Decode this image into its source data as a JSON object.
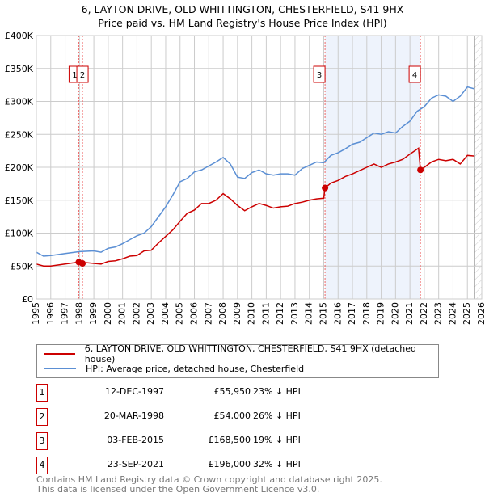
{
  "title": "6, LAYTON DRIVE, OLD WHITTINGTON, CHESTERFIELD, S41 9HX",
  "subtitle": "Price paid vs. HM Land Registry's House Price Index (HPI)",
  "chart_data": {
    "type": "line",
    "xlim": [
      1995,
      2026
    ],
    "ylim": [
      0,
      400000
    ],
    "yticks": [
      0,
      50000,
      100000,
      150000,
      200000,
      250000,
      300000,
      350000,
      400000
    ],
    "ytick_labels": [
      "£0",
      "£50K",
      "£100K",
      "£150K",
      "£200K",
      "£250K",
      "£300K",
      "£350K",
      "£400K"
    ],
    "xticks": [
      1995,
      1996,
      1997,
      1998,
      1999,
      2000,
      2001,
      2002,
      2003,
      2004,
      2005,
      2006,
      2007,
      2008,
      2009,
      2010,
      2011,
      2012,
      2013,
      2014,
      2015,
      2016,
      2017,
      2018,
      2019,
      2020,
      2021,
      2022,
      2023,
      2024,
      2025,
      2026
    ],
    "grid": true,
    "shaded_range": [
      2015.09,
      2021.73
    ],
    "hatched_from": 2025.5,
    "series": [
      {
        "name": "6, LAYTON DRIVE, OLD WHITTINGTON, CHESTERFIELD, S41 9HX (detached house)",
        "color": "#cc0000",
        "x": [
          1995,
          1995.5,
          1996,
          1997,
          1997.95,
          1998.2,
          1998.5,
          1999,
          1999.5,
          2000,
          2000.5,
          2001,
          2001.5,
          2002,
          2002.5,
          2003,
          2003.5,
          2004,
          2004.5,
          2005,
          2005.5,
          2006,
          2006.5,
          2007,
          2007.5,
          2008,
          2008.5,
          2009,
          2009.5,
          2010,
          2010.5,
          2011,
          2011.5,
          2012,
          2012.5,
          2013,
          2013.5,
          2014,
          2014.5,
          2015,
          2015.09,
          2015.5,
          2016,
          2016.5,
          2017,
          2017.5,
          2018,
          2018.5,
          2019,
          2019.5,
          2020,
          2020.5,
          2021,
          2021.6,
          2021.73,
          2022,
          2022.5,
          2023,
          2023.5,
          2024,
          2024.5,
          2025,
          2025.5
        ],
        "y": [
          53000,
          50000,
          50000,
          53000,
          55950,
          54000,
          55000,
          54000,
          53000,
          57000,
          58000,
          61000,
          65000,
          66000,
          73000,
          74000,
          85000,
          95000,
          105000,
          118000,
          130000,
          135000,
          145000,
          145000,
          150000,
          160000,
          152000,
          142000,
          134000,
          140000,
          145000,
          142000,
          138000,
          140000,
          141000,
          145000,
          147000,
          150000,
          152000,
          153000,
          168500,
          176000,
          180000,
          186000,
          190000,
          195000,
          200000,
          205000,
          200000,
          205000,
          208000,
          212000,
          220000,
          229000,
          196000,
          200000,
          208000,
          212000,
          210000,
          212000,
          205000,
          218000,
          217000
        ]
      },
      {
        "name": "HPI: Average price, detached house, Chesterfield",
        "color": "#5b8fd4",
        "x": [
          1995,
          1995.5,
          1996,
          1997,
          1998,
          1999,
          1999.5,
          2000,
          2000.5,
          2001,
          2001.5,
          2002,
          2002.5,
          2003,
          2003.5,
          2004,
          2004.5,
          2005,
          2005.5,
          2006,
          2006.5,
          2007,
          2007.5,
          2008,
          2008.5,
          2009,
          2009.5,
          2010,
          2010.5,
          2011,
          2011.5,
          2012,
          2012.5,
          2013,
          2013.5,
          2014,
          2014.5,
          2015,
          2015.5,
          2016,
          2016.5,
          2017,
          2017.5,
          2018,
          2018.5,
          2019,
          2019.5,
          2020,
          2020.5,
          2021,
          2021.5,
          2022,
          2022.5,
          2023,
          2023.5,
          2024,
          2024.5,
          2025,
          2025.5
        ],
        "y": [
          71000,
          65000,
          66000,
          69000,
          72000,
          73000,
          71000,
          77000,
          79000,
          84000,
          90000,
          96000,
          100000,
          110000,
          125000,
          140000,
          158000,
          178000,
          183000,
          193000,
          196000,
          202000,
          208000,
          215000,
          205000,
          185000,
          183000,
          192000,
          196000,
          190000,
          188000,
          190000,
          190000,
          188000,
          198000,
          203000,
          208000,
          207000,
          218000,
          222000,
          228000,
          235000,
          238000,
          245000,
          252000,
          250000,
          254000,
          252000,
          262000,
          270000,
          285000,
          292000,
          305000,
          310000,
          308000,
          300000,
          308000,
          322000,
          319000
        ]
      }
    ],
    "transactions": [
      {
        "id": "1",
        "date": "12-DEC-1997",
        "x": 1997.95,
        "price": "£55,950",
        "value": 55950,
        "hpi": "23% ↓ HPI"
      },
      {
        "id": "2",
        "date": "20-MAR-1998",
        "x": 1998.21,
        "price": "£54,000",
        "value": 54000,
        "hpi": "26% ↓ HPI"
      },
      {
        "id": "3",
        "date": "03-FEB-2015",
        "x": 2015.09,
        "price": "£168,500",
        "value": 168500,
        "hpi": "19% ↓ HPI"
      },
      {
        "id": "4",
        "date": "23-SEP-2021",
        "x": 2021.73,
        "price": "£196,000",
        "value": 196000,
        "hpi": "32% ↓ HPI"
      }
    ]
  },
  "footer": [
    "Contains HM Land Registry data © Crown copyright and database right 2025.",
    "This data is licensed under the Open Government Licence v3.0."
  ]
}
